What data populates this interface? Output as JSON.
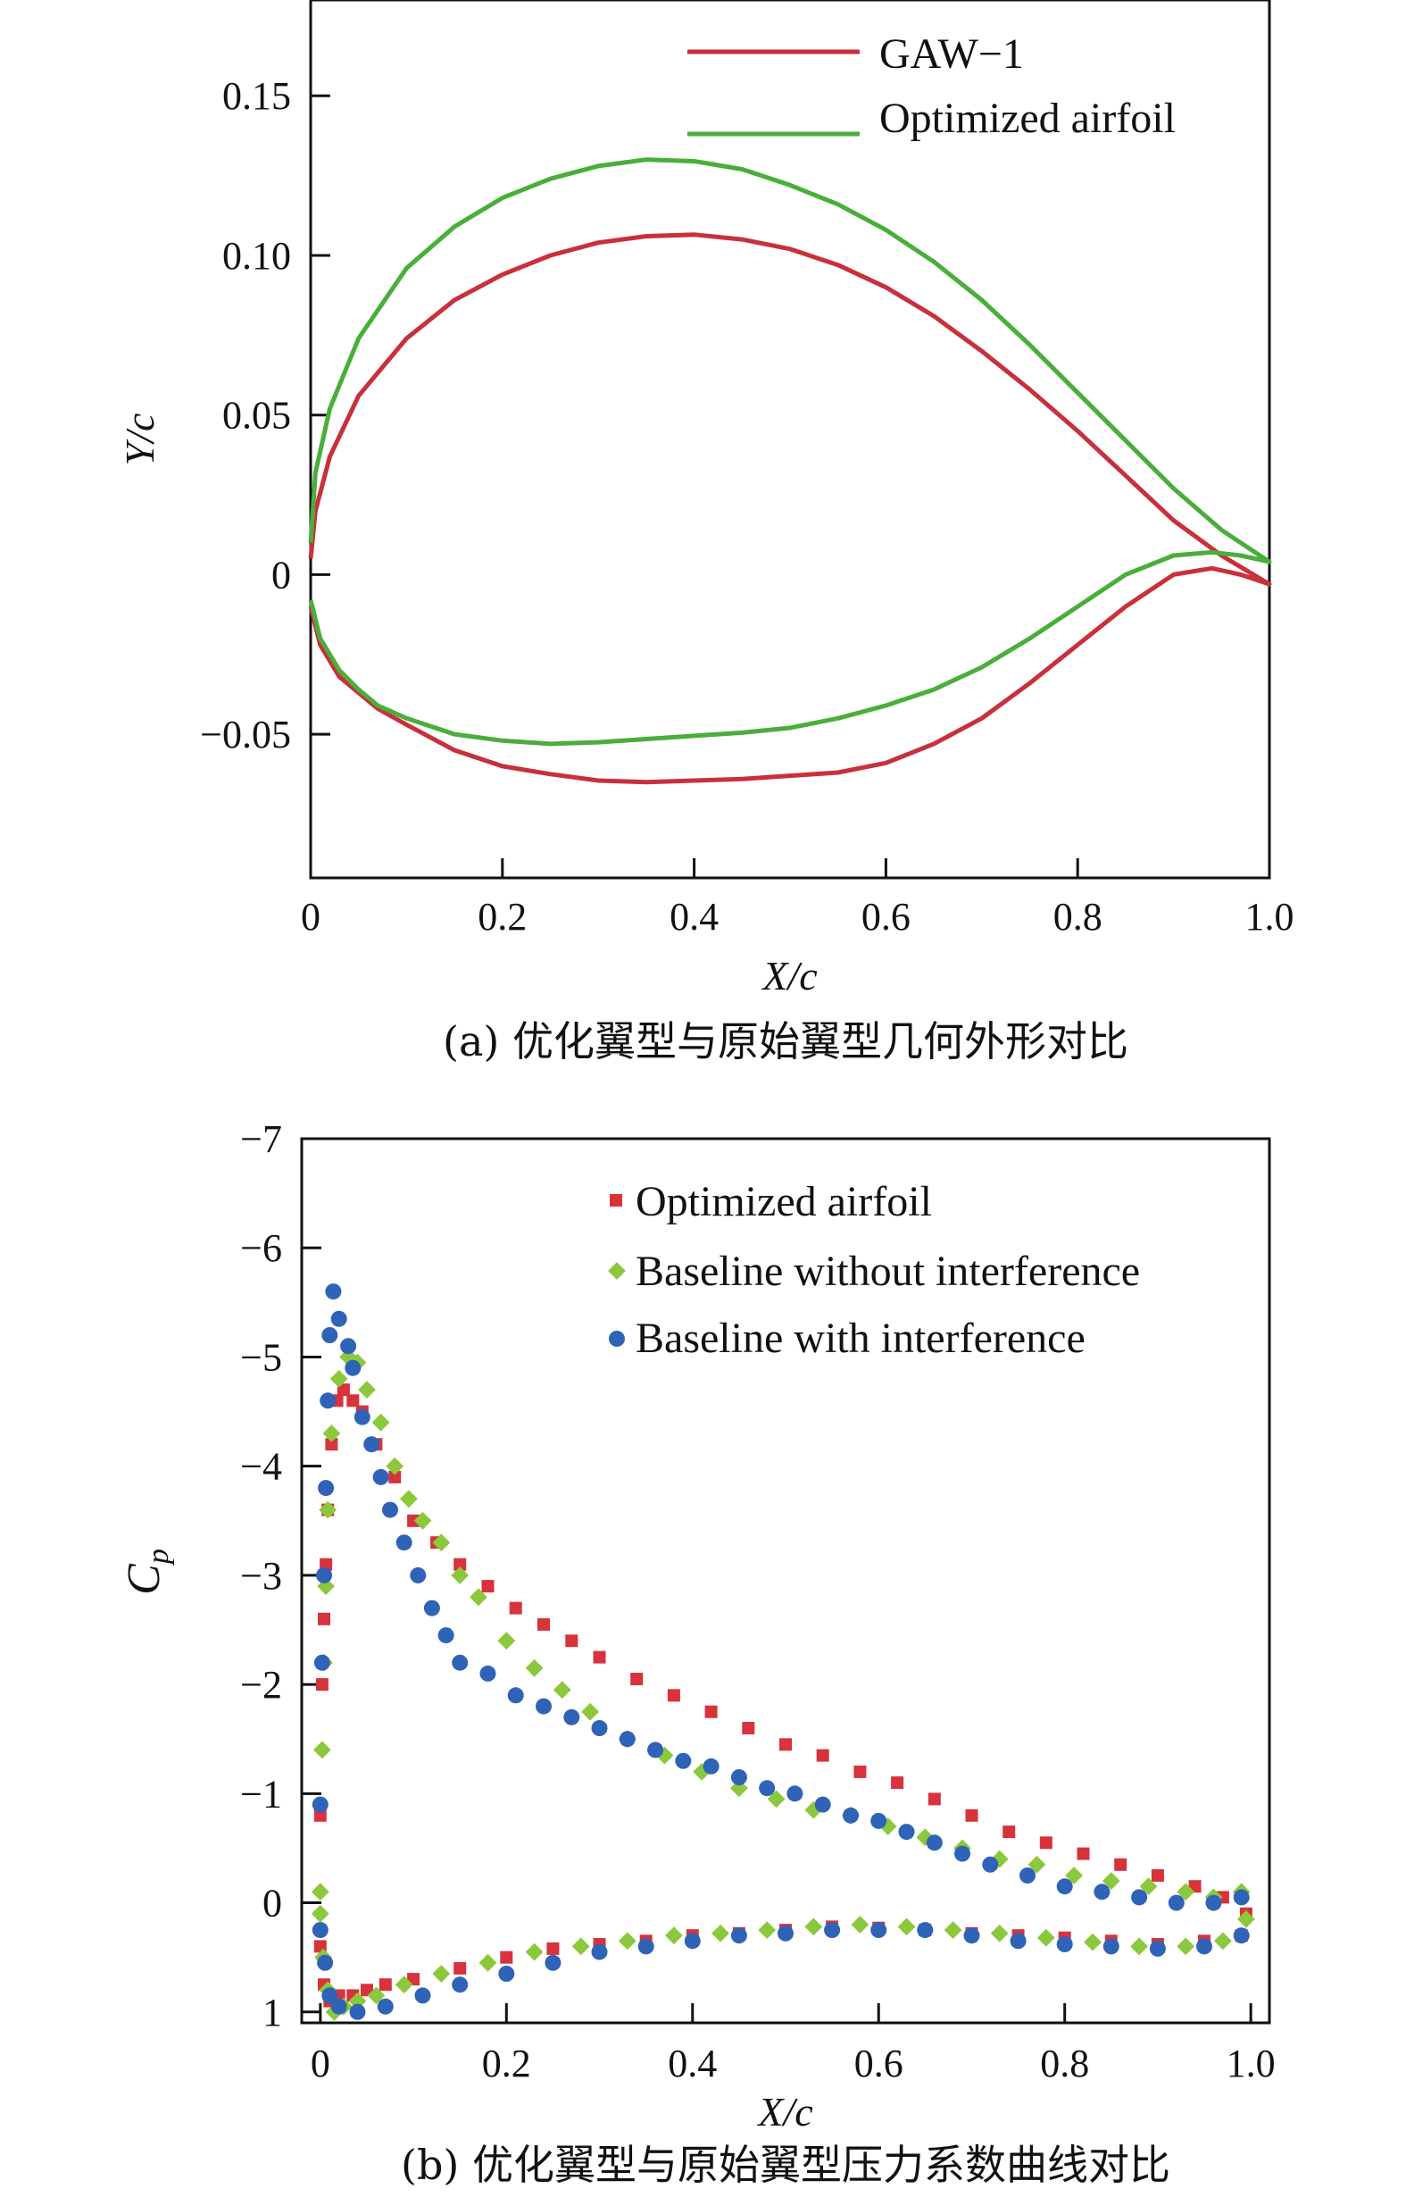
{
  "chart_data": [
    {
      "type": "line",
      "caption": "(a) 优化翼型与原始翼型几何外形对比",
      "xlabel": "X/c",
      "ylabel": "Y/c",
      "xlim": [
        0,
        1.0
      ],
      "ylim": [
        -0.095,
        0.18
      ],
      "xticks": [
        0,
        0.2,
        0.4,
        0.6,
        0.8,
        1.0
      ],
      "xtick_labels": [
        "0",
        "0.2",
        "0.4",
        "0.6",
        "0.8",
        "1.0"
      ],
      "yticks": [
        -0.05,
        0,
        0.05,
        0.1,
        0.15
      ],
      "ytick_labels": [
        "−0.05",
        "0",
        "0.05",
        "0.10",
        "0.15"
      ],
      "legend": {
        "placement": "top-right"
      },
      "series": [
        {
          "name": "GAW−1",
          "color": "#c8303c",
          "x": [
            0.0,
            0.005,
            0.02,
            0.05,
            0.1,
            0.15,
            0.2,
            0.25,
            0.3,
            0.35,
            0.4,
            0.45,
            0.5,
            0.55,
            0.6,
            0.65,
            0.7,
            0.75,
            0.8,
            0.85,
            0.9,
            0.95,
            1.0,
            1.0,
            0.97,
            0.94,
            0.9,
            0.85,
            0.8,
            0.75,
            0.7,
            0.65,
            0.6,
            0.55,
            0.5,
            0.45,
            0.4,
            0.35,
            0.3,
            0.25,
            0.2,
            0.15,
            0.1,
            0.07,
            0.05,
            0.03,
            0.01,
            0.0
          ],
          "y": [
            0.005,
            0.02,
            0.037,
            0.056,
            0.074,
            0.086,
            0.094,
            0.1,
            0.104,
            0.106,
            0.1065,
            0.105,
            0.102,
            0.097,
            0.09,
            0.081,
            0.07,
            0.058,
            0.045,
            0.031,
            0.017,
            0.006,
            -0.003,
            -0.003,
            0.0,
            0.002,
            0.0,
            -0.01,
            -0.022,
            -0.034,
            -0.045,
            -0.053,
            -0.059,
            -0.062,
            -0.063,
            -0.064,
            -0.0645,
            -0.065,
            -0.0645,
            -0.0625,
            -0.06,
            -0.055,
            -0.047,
            -0.042,
            -0.037,
            -0.032,
            -0.022,
            -0.01
          ]
        },
        {
          "name": "Optimized airfoil",
          "color": "#4aae3a",
          "x": [
            0.0,
            0.005,
            0.02,
            0.05,
            0.1,
            0.15,
            0.2,
            0.25,
            0.3,
            0.35,
            0.4,
            0.45,
            0.5,
            0.55,
            0.6,
            0.65,
            0.7,
            0.75,
            0.8,
            0.85,
            0.9,
            0.95,
            1.0,
            1.0,
            0.97,
            0.94,
            0.9,
            0.85,
            0.8,
            0.75,
            0.7,
            0.65,
            0.6,
            0.55,
            0.5,
            0.45,
            0.4,
            0.35,
            0.3,
            0.25,
            0.2,
            0.15,
            0.1,
            0.07,
            0.05,
            0.03,
            0.01,
            0.0
          ],
          "y": [
            0.01,
            0.032,
            0.052,
            0.074,
            0.096,
            0.109,
            0.118,
            0.124,
            0.128,
            0.13,
            0.1295,
            0.127,
            0.122,
            0.116,
            0.108,
            0.098,
            0.086,
            0.072,
            0.057,
            0.042,
            0.027,
            0.014,
            0.004,
            0.004,
            0.006,
            0.007,
            0.006,
            0.0,
            -0.01,
            -0.02,
            -0.029,
            -0.036,
            -0.041,
            -0.045,
            -0.048,
            -0.0495,
            -0.0505,
            -0.0515,
            -0.0525,
            -0.053,
            -0.052,
            -0.05,
            -0.045,
            -0.041,
            -0.036,
            -0.03,
            -0.02,
            -0.008
          ]
        }
      ]
    },
    {
      "type": "scatter",
      "caption": "(b) 优化翼型与原始翼型压力系数曲线对比",
      "xlabel": "X/c",
      "ylabel_main": "C",
      "ylabel_sub": "p",
      "xlim": [
        -0.02,
        1.02
      ],
      "ylim": [
        1.1,
        -7.0
      ],
      "y_axis_inverted": true,
      "xticks": [
        0,
        0.2,
        0.4,
        0.6,
        0.8,
        1.0
      ],
      "xtick_labels": [
        "0",
        "0.2",
        "0.4",
        "0.6",
        "0.8",
        "1.0"
      ],
      "yticks": [
        1,
        0,
        -1,
        -2,
        -3,
        -4,
        -5,
        -6,
        -7
      ],
      "ytick_labels": [
        "1",
        "0",
        "−1",
        "−2",
        "−3",
        "−4",
        "−5",
        "−6",
        "−7"
      ],
      "legend": {
        "placement": "top-right"
      },
      "series": [
        {
          "name": "Optimized airfoil",
          "marker": "square",
          "color": "#d8323c",
          "x": [
            0.0,
            0.002,
            0.004,
            0.006,
            0.008,
            0.012,
            0.018,
            0.025,
            0.035,
            0.045,
            0.06,
            0.08,
            0.1,
            0.125,
            0.15,
            0.18,
            0.21,
            0.24,
            0.27,
            0.3,
            0.34,
            0.38,
            0.42,
            0.46,
            0.5,
            0.54,
            0.58,
            0.62,
            0.66,
            0.7,
            0.74,
            0.78,
            0.82,
            0.86,
            0.9,
            0.94,
            0.97,
            0.995,
            0.0,
            0.004,
            0.01,
            0.02,
            0.035,
            0.05,
            0.07,
            0.1,
            0.15,
            0.2,
            0.25,
            0.3,
            0.35,
            0.4,
            0.45,
            0.5,
            0.55,
            0.6,
            0.65,
            0.7,
            0.75,
            0.8,
            0.85,
            0.9,
            0.95,
            0.99
          ],
          "y": [
            -0.8,
            -2.0,
            -2.6,
            -3.1,
            -3.6,
            -4.2,
            -4.6,
            -4.7,
            -4.6,
            -4.5,
            -4.2,
            -3.9,
            -3.5,
            -3.3,
            -3.1,
            -2.9,
            -2.7,
            -2.55,
            -2.4,
            -2.25,
            -2.05,
            -1.9,
            -1.75,
            -1.6,
            -1.45,
            -1.35,
            -1.2,
            -1.1,
            -0.95,
            -0.8,
            -0.65,
            -0.55,
            -0.45,
            -0.35,
            -0.25,
            -0.15,
            -0.05,
            0.1,
            0.4,
            0.75,
            0.9,
            0.85,
            0.85,
            0.8,
            0.75,
            0.7,
            0.6,
            0.5,
            0.42,
            0.38,
            0.35,
            0.3,
            0.28,
            0.25,
            0.22,
            0.23,
            0.25,
            0.28,
            0.3,
            0.32,
            0.35,
            0.38,
            0.35,
            0.3
          ]
        },
        {
          "name": "Baseline without interference",
          "marker": "diamond",
          "color": "#8cc83c",
          "x": [
            0.0,
            0.002,
            0.004,
            0.006,
            0.008,
            0.012,
            0.02,
            0.03,
            0.04,
            0.05,
            0.065,
            0.08,
            0.095,
            0.11,
            0.13,
            0.15,
            0.17,
            0.2,
            0.23,
            0.26,
            0.29,
            0.33,
            0.37,
            0.41,
            0.45,
            0.49,
            0.53,
            0.57,
            0.61,
            0.65,
            0.69,
            0.73,
            0.77,
            0.81,
            0.85,
            0.89,
            0.93,
            0.96,
            0.99,
            0.0,
            0.003,
            0.008,
            0.015,
            0.025,
            0.04,
            0.06,
            0.09,
            0.13,
            0.18,
            0.23,
            0.28,
            0.33,
            0.38,
            0.43,
            0.48,
            0.53,
            0.58,
            0.63,
            0.68,
            0.73,
            0.78,
            0.83,
            0.88,
            0.93,
            0.97,
            0.995
          ],
          "y": [
            -0.1,
            -1.4,
            -2.2,
            -2.9,
            -3.6,
            -4.3,
            -4.8,
            -5.0,
            -4.95,
            -4.7,
            -4.4,
            -4.0,
            -3.7,
            -3.5,
            -3.3,
            -3.0,
            -2.8,
            -2.4,
            -2.15,
            -1.95,
            -1.75,
            -1.5,
            -1.35,
            -1.2,
            -1.05,
            -0.95,
            -0.85,
            -0.8,
            -0.7,
            -0.6,
            -0.5,
            -0.4,
            -0.35,
            -0.25,
            -0.2,
            -0.15,
            -0.1,
            -0.05,
            -0.1,
            0.1,
            0.5,
            0.8,
            1.0,
            0.95,
            0.9,
            0.85,
            0.75,
            0.65,
            0.55,
            0.45,
            0.4,
            0.35,
            0.3,
            0.28,
            0.25,
            0.22,
            0.2,
            0.22,
            0.25,
            0.28,
            0.32,
            0.36,
            0.4,
            0.4,
            0.35,
            0.15
          ]
        },
        {
          "name": "Baseline with interference",
          "marker": "circle",
          "color": "#2f63b8",
          "x": [
            0.0,
            0.002,
            0.004,
            0.006,
            0.008,
            0.01,
            0.014,
            0.02,
            0.03,
            0.035,
            0.045,
            0.055,
            0.065,
            0.075,
            0.09,
            0.105,
            0.12,
            0.135,
            0.15,
            0.18,
            0.21,
            0.24,
            0.27,
            0.3,
            0.33,
            0.36,
            0.39,
            0.42,
            0.45,
            0.48,
            0.51,
            0.54,
            0.57,
            0.6,
            0.63,
            0.66,
            0.69,
            0.72,
            0.76,
            0.8,
            0.84,
            0.88,
            0.92,
            0.96,
            0.99,
            0.0,
            0.005,
            0.01,
            0.02,
            0.04,
            0.07,
            0.11,
            0.15,
            0.2,
            0.25,
            0.3,
            0.35,
            0.4,
            0.45,
            0.5,
            0.55,
            0.6,
            0.65,
            0.7,
            0.75,
            0.8,
            0.85,
            0.9,
            0.95,
            0.99
          ],
          "y": [
            -0.9,
            -2.2,
            -3.0,
            -3.8,
            -4.6,
            -5.2,
            -5.6,
            -5.35,
            -5.1,
            -4.9,
            -4.45,
            -4.2,
            -3.9,
            -3.6,
            -3.3,
            -3.0,
            -2.7,
            -2.45,
            -2.2,
            -2.1,
            -1.9,
            -1.8,
            -1.7,
            -1.6,
            -1.5,
            -1.4,
            -1.3,
            -1.25,
            -1.15,
            -1.05,
            -1.0,
            -0.9,
            -0.8,
            -0.75,
            -0.65,
            -0.55,
            -0.45,
            -0.35,
            -0.25,
            -0.15,
            -0.1,
            -0.05,
            0.0,
            0.0,
            -0.05,
            0.25,
            0.55,
            0.85,
            0.95,
            1.0,
            0.95,
            0.85,
            0.75,
            0.65,
            0.55,
            0.45,
            0.4,
            0.35,
            0.3,
            0.28,
            0.25,
            0.25,
            0.25,
            0.3,
            0.35,
            0.38,
            0.4,
            0.42,
            0.4,
            0.3
          ]
        }
      ]
    }
  ]
}
